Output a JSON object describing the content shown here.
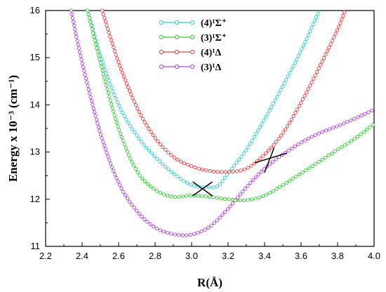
{
  "chart_data": {
    "type": "line",
    "xlabel": "R(Å)",
    "ylabel": "Energy x 10⁻³ (cm⁻¹)",
    "xlim": [
      2.2,
      4.0
    ],
    "ylim": [
      11,
      16
    ],
    "x_ticks": [
      "2.2",
      "2.4",
      "2.6",
      "2.8",
      "3.0",
      "3.2",
      "3.4",
      "3.6",
      "3.8",
      "4.0"
    ],
    "y_ticks": [
      "11",
      "12",
      "13",
      "14",
      "15",
      "16"
    ],
    "legend_position": "top-center",
    "marker": "open-circle",
    "series": [
      {
        "name": "(4)¹Σ⁺",
        "color": "#33cccc",
        "x": [
          2.43,
          2.5,
          2.6,
          2.7,
          2.8,
          2.9,
          3.0,
          3.1,
          3.15,
          3.2,
          3.3,
          3.4,
          3.5,
          3.6,
          3.7
        ],
        "y": [
          16.0,
          15.05,
          14.0,
          13.35,
          12.9,
          12.55,
          12.3,
          12.25,
          12.3,
          12.55,
          13.05,
          13.7,
          14.4,
          15.15,
          16.0
        ]
      },
      {
        "name": "(3)¹Σ⁺",
        "color": "#33cc33",
        "x": [
          2.43,
          2.5,
          2.6,
          2.7,
          2.8,
          2.9,
          3.0,
          3.1,
          3.2,
          3.3,
          3.4,
          3.5,
          3.6,
          3.7,
          3.8,
          3.9,
          4.0
        ],
        "y": [
          16.0,
          14.9,
          13.5,
          12.6,
          12.2,
          12.05,
          12.08,
          12.05,
          12.0,
          11.98,
          12.08,
          12.3,
          12.55,
          12.8,
          13.05,
          13.3,
          13.6
        ]
      },
      {
        "name": "(4)¹Δ",
        "color": "#e84040",
        "x": [
          2.51,
          2.6,
          2.7,
          2.8,
          2.9,
          3.0,
          3.1,
          3.2,
          3.3,
          3.4,
          3.5,
          3.6,
          3.7,
          3.8,
          3.84
        ],
        "y": [
          16.0,
          14.9,
          13.95,
          13.3,
          12.9,
          12.7,
          12.6,
          12.58,
          12.65,
          12.95,
          13.4,
          14.05,
          14.8,
          15.6,
          16.0
        ]
      },
      {
        "name": "(3)¹Δ",
        "color": "#b040e0",
        "x": [
          2.34,
          2.4,
          2.5,
          2.6,
          2.7,
          2.8,
          2.9,
          3.0,
          3.1,
          3.2,
          3.3,
          3.4,
          3.5,
          3.6,
          3.7,
          3.8,
          3.9,
          4.0
        ],
        "y": [
          16.0,
          14.9,
          13.4,
          12.35,
          11.75,
          11.4,
          11.26,
          11.25,
          11.42,
          11.8,
          12.25,
          12.65,
          12.95,
          13.2,
          13.4,
          13.55,
          13.72,
          13.9
        ]
      }
    ],
    "crossing_markers": [
      {
        "x": 3.06,
        "y": 12.22,
        "color": "#000000"
      },
      {
        "x": 3.43,
        "y": 12.8,
        "color": "#000000"
      }
    ]
  }
}
